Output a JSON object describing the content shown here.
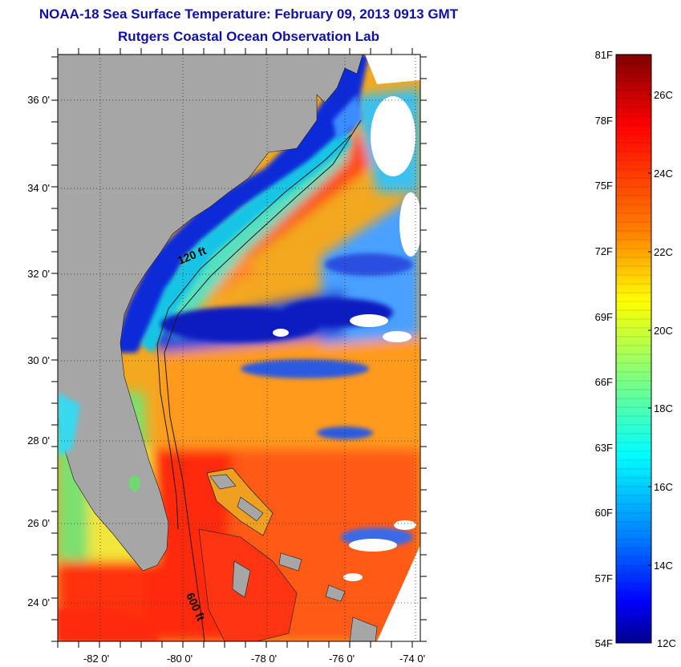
{
  "header": {
    "title": "NOAA-18 Sea Surface Temperature:  February 09, 2013 0913 GMT",
    "subtitle": "Rutgers Coastal Ocean Observation Lab"
  },
  "map": {
    "lat_labels": [
      "36 0'",
      "34 0'",
      "32 0'",
      "30 0'",
      "28 0'",
      "26 0'",
      "24 0'"
    ],
    "lon_labels": [
      "-82 0'",
      "-80 0'",
      "-78 0'",
      "-76 0'",
      "-74 0'"
    ],
    "isobath_labels": [
      "120 ft",
      "600 ft"
    ],
    "land_color": "#a6a6a6",
    "cloud_color": "#ffffff"
  },
  "colorbar": {
    "f_labels": [
      "81F",
      "78F",
      "75F",
      "72F",
      "69F",
      "66F",
      "63F",
      "60F",
      "57F",
      "54F"
    ],
    "c_labels": [
      "26C",
      "24C",
      "22C",
      "20C",
      "18C",
      "16C",
      "14C",
      "12C"
    ],
    "colors": [
      "#7f0000",
      "#ff0000",
      "#ff7f00",
      "#ffff00",
      "#7fff7f",
      "#00ffff",
      "#007fff",
      "#0000ff",
      "#00008f"
    ]
  }
}
